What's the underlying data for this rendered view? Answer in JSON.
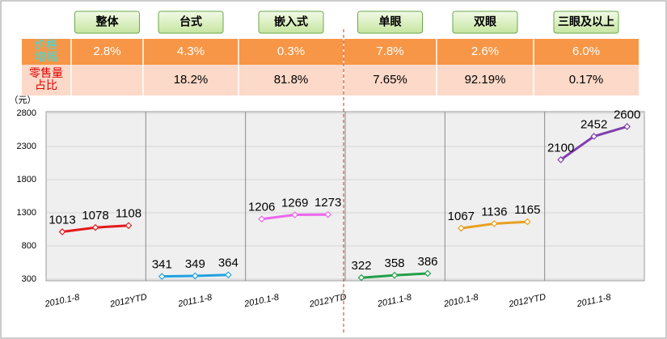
{
  "table": {
    "columns": [
      "整体",
      "台式",
      "嵌入式",
      "单眼",
      "双眼",
      "三眼及以上"
    ],
    "rows": [
      {
        "label": [
          "价格",
          "增幅"
        ],
        "cells": [
          "2.8%",
          "4.3%",
          "0.3%",
          "7.8%",
          "2.6%",
          "6.0%"
        ]
      },
      {
        "label": [
          "零售量",
          "占比"
        ],
        "cells": [
          null,
          "18.2%",
          "81.8%",
          "7.65%",
          "92.19%",
          "0.17%"
        ]
      }
    ]
  },
  "chart_data": {
    "type": "line",
    "y_label": "（元）",
    "categories": [
      "2010.1-8",
      null,
      "2012YTD",
      null,
      "2011.1-8",
      null,
      "2010.1-8",
      null,
      "2012YTD",
      null,
      "2011.1-8",
      null,
      "2010.1-8",
      null,
      "2012YTD",
      null,
      "2011.1-8",
      null
    ],
    "series": [
      {
        "color": "#e31a1c",
        "values": [
          1013,
          1078,
          1108,
          null,
          null,
          null,
          null,
          null,
          null,
          null,
          null,
          null,
          null,
          null,
          null,
          null,
          null,
          null
        ]
      },
      {
        "color": "#1fa2e0",
        "values": [
          null,
          null,
          null,
          341,
          349,
          364,
          null,
          null,
          null,
          null,
          null,
          null,
          null,
          null,
          null,
          null,
          null,
          null
        ]
      },
      {
        "color": "#ee66ee",
        "values": [
          null,
          null,
          null,
          null,
          null,
          null,
          1206,
          1269,
          1273,
          null,
          null,
          null,
          null,
          null,
          null,
          null,
          null,
          null
        ]
      },
      {
        "color": "#22a04a",
        "values": [
          null,
          null,
          null,
          null,
          null,
          null,
          null,
          null,
          null,
          322,
          358,
          386,
          null,
          null,
          null,
          null,
          null,
          null
        ]
      },
      {
        "color": "#e8a020",
        "values": [
          null,
          null,
          null,
          null,
          null,
          null,
          null,
          null,
          null,
          null,
          null,
          null,
          1067,
          1136,
          1165,
          null,
          null,
          null
        ]
      },
      {
        "color": "#8040b0",
        "values": [
          null,
          null,
          null,
          null,
          null,
          null,
          null,
          null,
          null,
          null,
          null,
          null,
          null,
          null,
          null,
          2100,
          2452,
          2600
        ]
      }
    ],
    "ylim": [
      300,
      2800
    ],
    "yticks": [
      300,
      800,
      1300,
      1800,
      2300,
      2800
    ],
    "grid": true
  }
}
